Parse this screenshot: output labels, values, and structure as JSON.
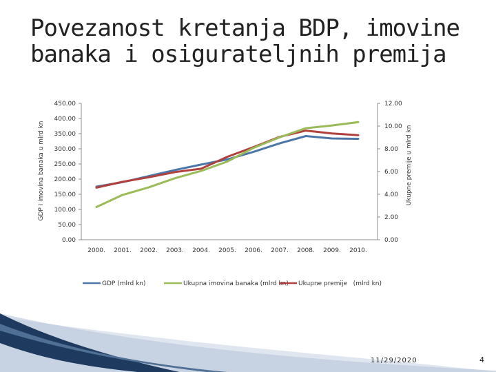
{
  "slide": {
    "title_line1": "Povezanost kretanja BDP, imovine",
    "title_line2": "banaka i osigurateljnih premija",
    "date": "11/29/2020",
    "page_number": "4"
  },
  "colors": {
    "gdp": "#4a77a8",
    "assets": "#9bbb59",
    "premiums": "#b0413e",
    "accent_dark": "#1f3a5f"
  },
  "chart_data": {
    "type": "line",
    "title": "",
    "categories": [
      "2000.",
      "2001.",
      "2002.",
      "2003.",
      "2004.",
      "2005.",
      "2006.",
      "2007.",
      "2008.",
      "2009.",
      "2010."
    ],
    "ylabel": "GDP i imovina banaka u mlrd kn",
    "y2label": "Ukupne premije u mlrd kn",
    "ylim": [
      0,
      450
    ],
    "y2lim": [
      0,
      12
    ],
    "yticks": [
      "0.00",
      "50.00",
      "100.00",
      "150.00",
      "200.00",
      "250.00",
      "300.00",
      "350.00",
      "400.00",
      "450.00"
    ],
    "y2ticks": [
      "0.00",
      "2.00",
      "4.00",
      "6.00",
      "8.00",
      "10.00",
      "12.00"
    ],
    "grid": false,
    "legend_position": "bottom",
    "series": [
      {
        "name": "GDP (mlrd kn)",
        "axis": "left",
        "color_key": "gdp",
        "values": [
          175,
          190,
          210,
          230,
          248,
          265,
          290,
          318,
          342,
          334,
          333
        ]
      },
      {
        "name": "Ukupna imovina banaka (mlrd kn)",
        "axis": "left",
        "color_key": "assets",
        "values": [
          108,
          148,
          173,
          203,
          227,
          258,
          303,
          338,
          368,
          377,
          388
        ]
      },
      {
        "name": "Ukupne premije   (mlrd kn)",
        "axis": "right",
        "color_key": "premiums",
        "values": [
          4.58,
          5.1,
          5.5,
          5.95,
          6.25,
          7.3,
          8.15,
          9.05,
          9.6,
          9.35,
          9.2
        ]
      }
    ]
  }
}
